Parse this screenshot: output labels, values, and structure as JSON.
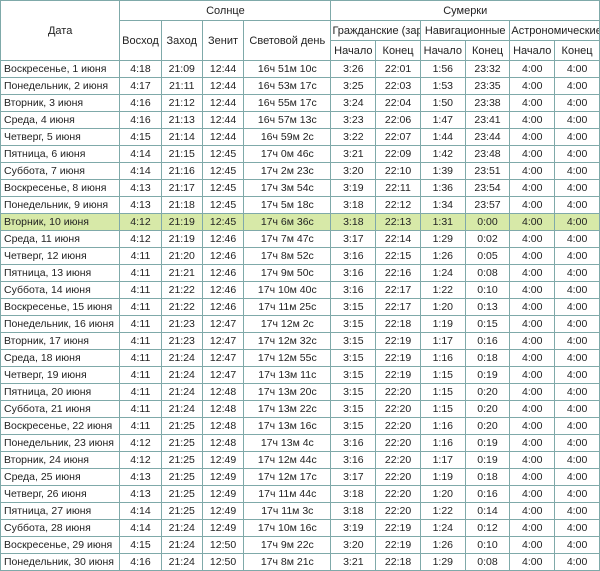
{
  "hdr": {
    "date": "Дата",
    "sun": "Солнце",
    "twilight": "Сумерки",
    "sunrise": "Восход",
    "sunset": "Заход",
    "zenith": "Зенит",
    "daylight": "Световой день",
    "civil": "Гражданские (заря)",
    "nav": "Навигационные",
    "astro": "Астрономические",
    "start": "Начало",
    "end": "Конец"
  },
  "highlightRow": 9,
  "rows": [
    {
      "d": "Воскресенье, 1 июня",
      "r": "4:18",
      "s": "21:09",
      "z": "12:44",
      "dl": "16ч 51м 10с",
      "cs": "3:26",
      "ce": "22:01",
      "ns": "1:56",
      "ne": "23:32",
      "as": "4:00",
      "ae": "4:00"
    },
    {
      "d": "Понедельник, 2 июня",
      "r": "4:17",
      "s": "21:11",
      "z": "12:44",
      "dl": "16ч 53м 17с",
      "cs": "3:25",
      "ce": "22:03",
      "ns": "1:53",
      "ne": "23:35",
      "as": "4:00",
      "ae": "4:00"
    },
    {
      "d": "Вторник, 3 июня",
      "r": "4:16",
      "s": "21:12",
      "z": "12:44",
      "dl": "16ч 55м 17с",
      "cs": "3:24",
      "ce": "22:04",
      "ns": "1:50",
      "ne": "23:38",
      "as": "4:00",
      "ae": "4:00"
    },
    {
      "d": "Среда, 4 июня",
      "r": "4:16",
      "s": "21:13",
      "z": "12:44",
      "dl": "16ч 57м 13с",
      "cs": "3:23",
      "ce": "22:06",
      "ns": "1:47",
      "ne": "23:41",
      "as": "4:00",
      "ae": "4:00"
    },
    {
      "d": "Четверг, 5 июня",
      "r": "4:15",
      "s": "21:14",
      "z": "12:44",
      "dl": "16ч 59м 2с",
      "cs": "3:22",
      "ce": "22:07",
      "ns": "1:44",
      "ne": "23:44",
      "as": "4:00",
      "ae": "4:00"
    },
    {
      "d": "Пятница, 6 июня",
      "r": "4:14",
      "s": "21:15",
      "z": "12:45",
      "dl": "17ч 0м 46с",
      "cs": "3:21",
      "ce": "22:09",
      "ns": "1:42",
      "ne": "23:48",
      "as": "4:00",
      "ae": "4:00"
    },
    {
      "d": "Суббота, 7 июня",
      "r": "4:14",
      "s": "21:16",
      "z": "12:45",
      "dl": "17ч 2м 23с",
      "cs": "3:20",
      "ce": "22:10",
      "ns": "1:39",
      "ne": "23:51",
      "as": "4:00",
      "ae": "4:00"
    },
    {
      "d": "Воскресенье, 8 июня",
      "r": "4:13",
      "s": "21:17",
      "z": "12:45",
      "dl": "17ч 3м 54с",
      "cs": "3:19",
      "ce": "22:11",
      "ns": "1:36",
      "ne": "23:54",
      "as": "4:00",
      "ae": "4:00"
    },
    {
      "d": "Понедельник, 9 июня",
      "r": "4:13",
      "s": "21:18",
      "z": "12:45",
      "dl": "17ч 5м 18с",
      "cs": "3:18",
      "ce": "22:12",
      "ns": "1:34",
      "ne": "23:57",
      "as": "4:00",
      "ae": "4:00"
    },
    {
      "d": "Вторник, 10 июня",
      "r": "4:12",
      "s": "21:19",
      "z": "12:45",
      "dl": "17ч 6м 36с",
      "cs": "3:18",
      "ce": "22:13",
      "ns": "1:31",
      "ne": "0:00",
      "as": "4:00",
      "ae": "4:00"
    },
    {
      "d": "Среда, 11 июня",
      "r": "4:12",
      "s": "21:19",
      "z": "12:46",
      "dl": "17ч 7м 47с",
      "cs": "3:17",
      "ce": "22:14",
      "ns": "1:29",
      "ne": "0:02",
      "as": "4:00",
      "ae": "4:00"
    },
    {
      "d": "Четверг, 12 июня",
      "r": "4:11",
      "s": "21:20",
      "z": "12:46",
      "dl": "17ч 8м 52с",
      "cs": "3:16",
      "ce": "22:15",
      "ns": "1:26",
      "ne": "0:05",
      "as": "4:00",
      "ae": "4:00"
    },
    {
      "d": "Пятница, 13 июня",
      "r": "4:11",
      "s": "21:21",
      "z": "12:46",
      "dl": "17ч 9м 50с",
      "cs": "3:16",
      "ce": "22:16",
      "ns": "1:24",
      "ne": "0:08",
      "as": "4:00",
      "ae": "4:00"
    },
    {
      "d": "Суббота, 14 июня",
      "r": "4:11",
      "s": "21:22",
      "z": "12:46",
      "dl": "17ч 10м 40с",
      "cs": "3:16",
      "ce": "22:17",
      "ns": "1:22",
      "ne": "0:10",
      "as": "4:00",
      "ae": "4:00"
    },
    {
      "d": "Воскресенье, 15 июня",
      "r": "4:11",
      "s": "21:22",
      "z": "12:46",
      "dl": "17ч 11м 25с",
      "cs": "3:15",
      "ce": "22:17",
      "ns": "1:20",
      "ne": "0:13",
      "as": "4:00",
      "ae": "4:00"
    },
    {
      "d": "Понедельник, 16 июня",
      "r": "4:11",
      "s": "21:23",
      "z": "12:47",
      "dl": "17ч 12м 2с",
      "cs": "3:15",
      "ce": "22:18",
      "ns": "1:19",
      "ne": "0:15",
      "as": "4:00",
      "ae": "4:00"
    },
    {
      "d": "Вторник, 17 июня",
      "r": "4:11",
      "s": "21:23",
      "z": "12:47",
      "dl": "17ч 12м 32с",
      "cs": "3:15",
      "ce": "22:19",
      "ns": "1:17",
      "ne": "0:16",
      "as": "4:00",
      "ae": "4:00"
    },
    {
      "d": "Среда, 18 июня",
      "r": "4:11",
      "s": "21:24",
      "z": "12:47",
      "dl": "17ч 12м 55с",
      "cs": "3:15",
      "ce": "22:19",
      "ns": "1:16",
      "ne": "0:18",
      "as": "4:00",
      "ae": "4:00"
    },
    {
      "d": "Четверг, 19 июня",
      "r": "4:11",
      "s": "21:24",
      "z": "12:47",
      "dl": "17ч 13м 11с",
      "cs": "3:15",
      "ce": "22:19",
      "ns": "1:15",
      "ne": "0:19",
      "as": "4:00",
      "ae": "4:00"
    },
    {
      "d": "Пятница, 20 июня",
      "r": "4:11",
      "s": "21:24",
      "z": "12:48",
      "dl": "17ч 13м 20с",
      "cs": "3:15",
      "ce": "22:20",
      "ns": "1:15",
      "ne": "0:20",
      "as": "4:00",
      "ae": "4:00"
    },
    {
      "d": "Суббота, 21 июня",
      "r": "4:11",
      "s": "21:24",
      "z": "12:48",
      "dl": "17ч 13м 22с",
      "cs": "3:15",
      "ce": "22:20",
      "ns": "1:15",
      "ne": "0:20",
      "as": "4:00",
      "ae": "4:00"
    },
    {
      "d": "Воскресенье, 22 июня",
      "r": "4:11",
      "s": "21:25",
      "z": "12:48",
      "dl": "17ч 13м 16с",
      "cs": "3:15",
      "ce": "22:20",
      "ns": "1:16",
      "ne": "0:20",
      "as": "4:00",
      "ae": "4:00"
    },
    {
      "d": "Понедельник, 23 июня",
      "r": "4:12",
      "s": "21:25",
      "z": "12:48",
      "dl": "17ч 13м 4с",
      "cs": "3:16",
      "ce": "22:20",
      "ns": "1:16",
      "ne": "0:19",
      "as": "4:00",
      "ae": "4:00"
    },
    {
      "d": "Вторник, 24 июня",
      "r": "4:12",
      "s": "21:25",
      "z": "12:49",
      "dl": "17ч 12м 44с",
      "cs": "3:16",
      "ce": "22:20",
      "ns": "1:17",
      "ne": "0:19",
      "as": "4:00",
      "ae": "4:00"
    },
    {
      "d": "Среда, 25 июня",
      "r": "4:13",
      "s": "21:25",
      "z": "12:49",
      "dl": "17ч 12м 17с",
      "cs": "3:17",
      "ce": "22:20",
      "ns": "1:19",
      "ne": "0:18",
      "as": "4:00",
      "ae": "4:00"
    },
    {
      "d": "Четверг, 26 июня",
      "r": "4:13",
      "s": "21:25",
      "z": "12:49",
      "dl": "17ч 11м 44с",
      "cs": "3:18",
      "ce": "22:20",
      "ns": "1:20",
      "ne": "0:16",
      "as": "4:00",
      "ae": "4:00"
    },
    {
      "d": "Пятница, 27 июня",
      "r": "4:14",
      "s": "21:25",
      "z": "12:49",
      "dl": "17ч 11м 3с",
      "cs": "3:18",
      "ce": "22:20",
      "ns": "1:22",
      "ne": "0:14",
      "as": "4:00",
      "ae": "4:00"
    },
    {
      "d": "Суббота, 28 июня",
      "r": "4:14",
      "s": "21:24",
      "z": "12:49",
      "dl": "17ч 10м 16с",
      "cs": "3:19",
      "ce": "22:19",
      "ns": "1:24",
      "ne": "0:12",
      "as": "4:00",
      "ae": "4:00"
    },
    {
      "d": "Воскресенье, 29 июня",
      "r": "4:15",
      "s": "21:24",
      "z": "12:50",
      "dl": "17ч 9м 22с",
      "cs": "3:20",
      "ce": "22:19",
      "ns": "1:26",
      "ne": "0:10",
      "as": "4:00",
      "ae": "4:00"
    },
    {
      "d": "Понедельник, 30 июня",
      "r": "4:16",
      "s": "21:24",
      "z": "12:50",
      "dl": "17ч 8м 21с",
      "cs": "3:21",
      "ce": "22:18",
      "ns": "1:29",
      "ne": "0:08",
      "as": "4:00",
      "ae": "4:00"
    }
  ]
}
